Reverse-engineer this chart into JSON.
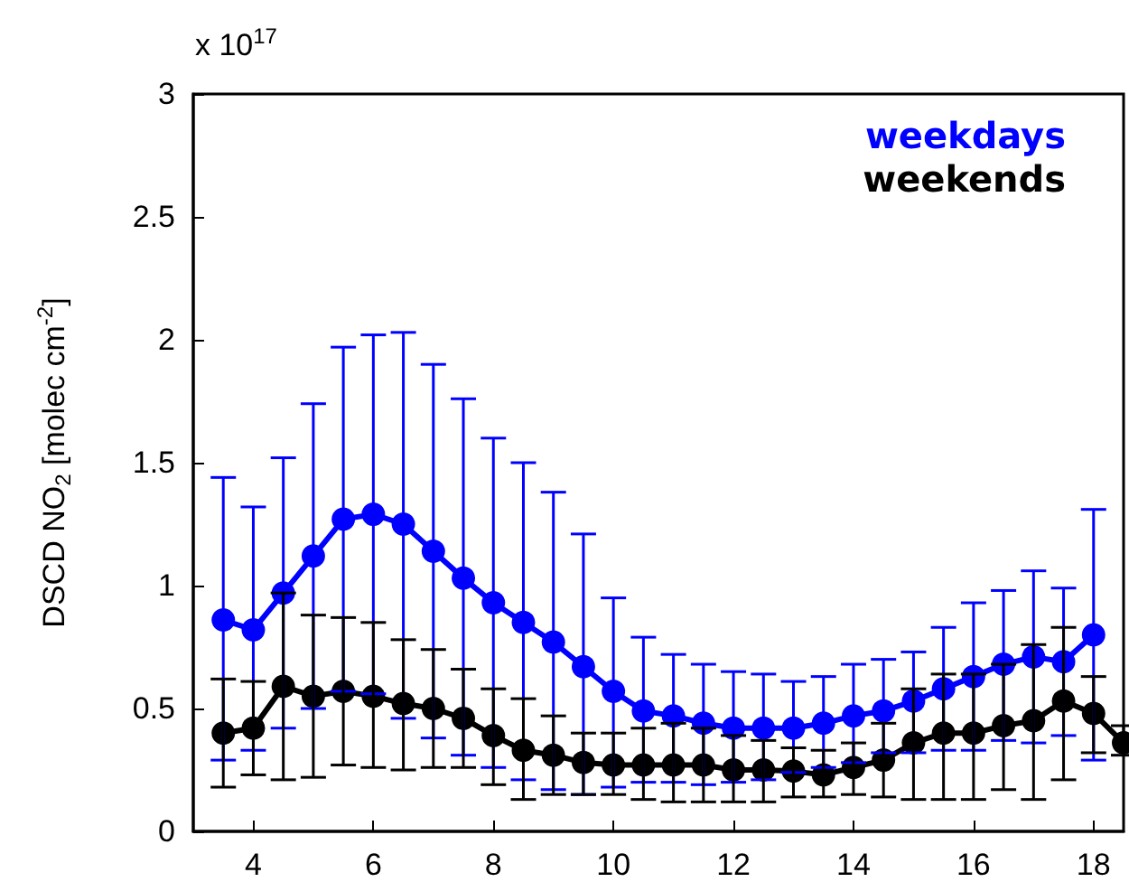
{
  "chart_data": {
    "type": "line",
    "ylabel": "DSCD NO$_{2}$ [molec cm$^{-2}$]",
    "annotations": [
      "x 10$^{17}$"
    ],
    "x": [
      3.5,
      4,
      4.5,
      5,
      5.5,
      6,
      6.5,
      7,
      7.5,
      8,
      8.5,
      9,
      9.5,
      10,
      10.5,
      11,
      11.5,
      12,
      12.5,
      13,
      13.5,
      14,
      14.5,
      15,
      15.5,
      16,
      16.5,
      17,
      17.5,
      18,
      18.5
    ],
    "series": [
      {
        "name": "weekdays",
        "color": "#0000ff",
        "values": [
          0.86,
          0.82,
          0.97,
          1.12,
          1.27,
          1.29,
          1.25,
          1.14,
          1.03,
          0.93,
          0.85,
          0.77,
          0.67,
          0.57,
          0.49,
          0.47,
          0.44,
          0.42,
          0.42,
          0.42,
          0.44,
          0.47,
          0.49,
          0.53,
          0.58,
          0.63,
          0.68,
          0.71,
          0.69,
          0.8,
          null
        ],
        "errors": [
          [
            0.29,
            1.44
          ],
          [
            0.33,
            1.32
          ],
          [
            0.42,
            1.52
          ],
          [
            0.5,
            1.74
          ],
          [
            0.57,
            1.97
          ],
          [
            0.56,
            2.02
          ],
          [
            0.46,
            2.03
          ],
          [
            0.38,
            1.9
          ],
          [
            0.31,
            1.76
          ],
          [
            0.26,
            1.6
          ],
          [
            0.21,
            1.5
          ],
          [
            0.17,
            1.38
          ],
          [
            0.15,
            1.21
          ],
          [
            0.18,
            0.95
          ],
          [
            0.2,
            0.79
          ],
          [
            0.2,
            0.72
          ],
          [
            0.19,
            0.68
          ],
          [
            0.2,
            0.65
          ],
          [
            0.21,
            0.64
          ],
          [
            0.24,
            0.61
          ],
          [
            0.26,
            0.63
          ],
          [
            0.28,
            0.68
          ],
          [
            0.32,
            0.7
          ],
          [
            0.32,
            0.73
          ],
          [
            0.33,
            0.83
          ],
          [
            0.33,
            0.93
          ],
          [
            0.37,
            0.98
          ],
          [
            0.36,
            1.06
          ],
          [
            0.39,
            0.99
          ],
          [
            0.29,
            1.31
          ],
          null
        ]
      },
      {
        "name": "weekends",
        "color": "#000000",
        "values": [
          0.4,
          0.42,
          0.59,
          0.55,
          0.57,
          0.55,
          0.52,
          0.5,
          0.46,
          0.39,
          0.33,
          0.31,
          0.28,
          0.27,
          0.27,
          0.27,
          0.27,
          0.25,
          0.25,
          0.245,
          0.23,
          0.26,
          0.29,
          0.36,
          0.4,
          0.4,
          0.43,
          0.45,
          0.53,
          0.48,
          0.36
        ],
        "errors": [
          [
            0.18,
            0.62
          ],
          [
            0.23,
            0.61
          ],
          [
            0.21,
            0.97
          ],
          [
            0.22,
            0.88
          ],
          [
            0.27,
            0.87
          ],
          [
            0.26,
            0.85
          ],
          [
            0.25,
            0.78
          ],
          [
            0.26,
            0.74
          ],
          [
            0.26,
            0.66
          ],
          [
            0.19,
            0.58
          ],
          [
            0.13,
            0.54
          ],
          [
            0.15,
            0.47
          ],
          [
            0.15,
            0.4
          ],
          [
            0.15,
            0.4
          ],
          [
            0.13,
            0.42
          ],
          [
            0.12,
            0.44
          ],
          [
            0.12,
            0.42
          ],
          [
            0.12,
            0.39
          ],
          [
            0.12,
            0.37
          ],
          [
            0.14,
            0.34
          ],
          [
            0.14,
            0.33
          ],
          [
            0.15,
            0.36
          ],
          [
            0.14,
            0.44
          ],
          [
            0.13,
            0.58
          ],
          [
            0.13,
            0.64
          ],
          [
            0.13,
            0.64
          ],
          [
            0.17,
            0.68
          ],
          [
            0.13,
            0.76
          ],
          [
            0.21,
            0.83
          ],
          [
            0.32,
            0.63
          ],
          [
            0.31,
            0.43
          ]
        ]
      }
    ],
    "xlim": [
      3,
      18.5
    ],
    "xticks": [
      4,
      6,
      8,
      10,
      12,
      14,
      16,
      18
    ],
    "ylim": [
      0,
      3
    ],
    "yticks": [
      0,
      0.5,
      1,
      1.5,
      2,
      2.5,
      3
    ],
    "legend": "top right",
    "grid": false,
    "marker": "circle",
    "line_style": "solid"
  }
}
